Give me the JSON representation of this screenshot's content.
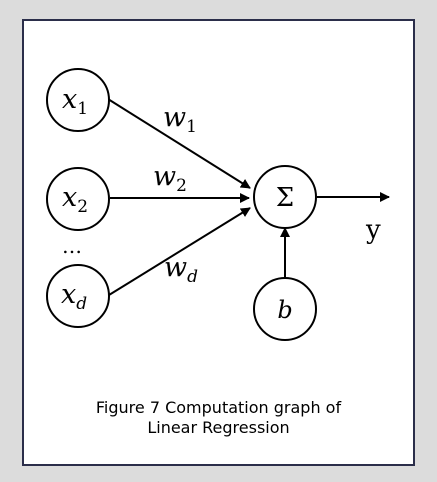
{
  "diagram": {
    "inputs": [
      {
        "var": "x",
        "sub": "1"
      },
      {
        "var": "x",
        "sub": "2"
      },
      {
        "var": "x",
        "sub": "d"
      }
    ],
    "ellipsis": "…",
    "weights": [
      {
        "var": "w",
        "sub": "1"
      },
      {
        "var": "w",
        "sub": "2"
      },
      {
        "var": "w",
        "sub": "d"
      }
    ],
    "sum_symbol": "Σ",
    "bias": "b",
    "output": "y"
  },
  "caption": {
    "line1": "Figure 7  Computation graph of",
    "line2": "Linear Regression"
  }
}
